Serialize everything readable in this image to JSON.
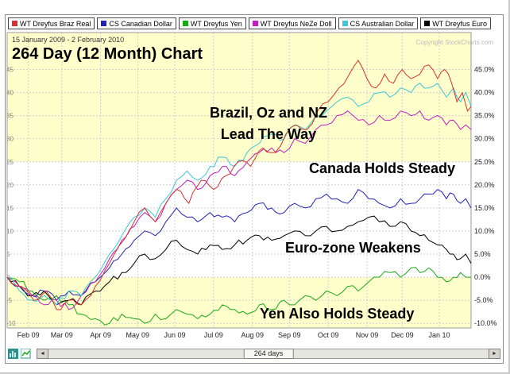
{
  "page": {
    "copyright": "Copyright StockCharts.com"
  },
  "footer": {
    "left_arrow": "◄",
    "right_arrow": "►",
    "slider_label": "264 days"
  },
  "chart_data": {
    "type": "line",
    "title": "264 Day (12 Month) Chart",
    "subtitle": "15 January 2009 - 2 February 2010",
    "ylabel": "percent change since start",
    "legend_position": "top",
    "grid": true,
    "x_axis": {
      "range": [
        0,
        263
      ],
      "unit": "trading days",
      "ticks": [
        {
          "label": "Feb 09",
          "t": 12
        },
        {
          "label": "Mar 09",
          "t": 31
        },
        {
          "label": "Apr 09",
          "t": 53
        },
        {
          "label": "May 09",
          "t": 74
        },
        {
          "label": "Jun 09",
          "t": 95
        },
        {
          "label": "Jul 09",
          "t": 117
        },
        {
          "label": "Aug 09",
          "t": 139
        },
        {
          "label": "Sep 09",
          "t": 160
        },
        {
          "label": "Oct 09",
          "t": 182
        },
        {
          "label": "Nov 09",
          "t": 204
        },
        {
          "label": "Dec 09",
          "t": 224
        },
        {
          "label": "Jan 10",
          "t": 245
        }
      ]
    },
    "y_axis": {
      "range": [
        -11,
        53
      ],
      "ticks": [
        45,
        40,
        35,
        30,
        25,
        20,
        15,
        10,
        5,
        0,
        -5,
        -10
      ],
      "format": "0.0%"
    },
    "bands": [
      {
        "from": 25,
        "to": 53,
        "color": "#FFFFCC"
      },
      {
        "from": -11,
        "to": 0,
        "color": "#FFFFCC"
      }
    ],
    "annotations": [
      {
        "text": "Brazil, Oz and NZ\nLead The Way"
      },
      {
        "text": "Canada Holds Steady"
      },
      {
        "text": "Euro-zone Weakens"
      },
      {
        "text": "Yen Also Holds Steady"
      }
    ],
    "series": [
      {
        "name": "WT Dreyfus Braz Real",
        "color": "#d83030",
        "points": [
          [
            0,
            0
          ],
          [
            8,
            -2
          ],
          [
            15,
            -5
          ],
          [
            22,
            -3
          ],
          [
            28,
            -7
          ],
          [
            35,
            -5
          ],
          [
            42,
            -6
          ],
          [
            50,
            -2
          ],
          [
            58,
            3
          ],
          [
            66,
            8
          ],
          [
            72,
            12
          ],
          [
            78,
            15
          ],
          [
            84,
            12
          ],
          [
            90,
            16
          ],
          [
            96,
            19
          ],
          [
            103,
            16
          ],
          [
            110,
            21
          ],
          [
            117,
            19
          ],
          [
            124,
            22
          ],
          [
            131,
            25
          ],
          [
            138,
            24
          ],
          [
            145,
            28
          ],
          [
            152,
            27
          ],
          [
            158,
            31
          ],
          [
            164,
            33
          ],
          [
            170,
            32
          ],
          [
            176,
            36
          ],
          [
            182,
            38
          ],
          [
            188,
            41
          ],
          [
            194,
            44
          ],
          [
            199,
            47
          ],
          [
            204,
            43
          ],
          [
            209,
            41
          ],
          [
            214,
            44
          ],
          [
            219,
            42
          ],
          [
            224,
            45
          ],
          [
            229,
            43
          ],
          [
            234,
            44
          ],
          [
            239,
            46
          ],
          [
            244,
            43
          ],
          [
            248,
            45
          ],
          [
            252,
            42
          ],
          [
            255,
            38
          ],
          [
            258,
            40
          ],
          [
            261,
            36
          ],
          [
            263,
            37
          ]
        ]
      },
      {
        "name": "CS Canadian Dollar",
        "color": "#2222b8",
        "points": [
          [
            0,
            0
          ],
          [
            7,
            -2
          ],
          [
            14,
            -4
          ],
          [
            21,
            -3
          ],
          [
            28,
            -5
          ],
          [
            35,
            -3
          ],
          [
            42,
            -4
          ],
          [
            50,
            -1
          ],
          [
            58,
            2
          ],
          [
            65,
            5
          ],
          [
            72,
            8
          ],
          [
            78,
            10
          ],
          [
            84,
            9
          ],
          [
            90,
            12
          ],
          [
            96,
            15
          ],
          [
            102,
            13
          ],
          [
            108,
            12
          ],
          [
            115,
            14
          ],
          [
            122,
            13
          ],
          [
            129,
            12
          ],
          [
            136,
            14
          ],
          [
            143,
            16
          ],
          [
            150,
            15
          ],
          [
            157,
            14
          ],
          [
            163,
            16
          ],
          [
            169,
            15
          ],
          [
            175,
            17
          ],
          [
            181,
            18
          ],
          [
            187,
            17
          ],
          [
            193,
            16
          ],
          [
            199,
            19
          ],
          [
            205,
            17
          ],
          [
            211,
            16
          ],
          [
            217,
            15
          ],
          [
            223,
            17
          ],
          [
            229,
            16
          ],
          [
            234,
            17
          ],
          [
            239,
            18
          ],
          [
            244,
            19
          ],
          [
            249,
            17
          ],
          [
            253,
            18
          ],
          [
            257,
            16
          ],
          [
            260,
            17
          ],
          [
            263,
            15
          ]
        ]
      },
      {
        "name": "WT Dreyfus Yen",
        "color": "#18a818",
        "points": [
          [
            0,
            0
          ],
          [
            7,
            -1
          ],
          [
            14,
            -3
          ],
          [
            21,
            -5
          ],
          [
            28,
            -4
          ],
          [
            35,
            -6
          ],
          [
            42,
            -8
          ],
          [
            50,
            -9
          ],
          [
            58,
            -10
          ],
          [
            65,
            -8
          ],
          [
            72,
            -9
          ],
          [
            78,
            -10
          ],
          [
            84,
            -8
          ],
          [
            90,
            -9
          ],
          [
            96,
            -7
          ],
          [
            102,
            -8
          ],
          [
            108,
            -9
          ],
          [
            115,
            -8
          ],
          [
            122,
            -6
          ],
          [
            129,
            -7
          ],
          [
            136,
            -8
          ],
          [
            143,
            -6
          ],
          [
            150,
            -7
          ],
          [
            157,
            -5
          ],
          [
            163,
            -6
          ],
          [
            169,
            -4
          ],
          [
            175,
            -5
          ],
          [
            181,
            -3
          ],
          [
            187,
            -4
          ],
          [
            193,
            -2
          ],
          [
            199,
            -3
          ],
          [
            205,
            -1
          ],
          [
            211,
            0
          ],
          [
            217,
            1
          ],
          [
            223,
            0
          ],
          [
            229,
            2
          ],
          [
            234,
            1
          ],
          [
            239,
            2
          ],
          [
            244,
            0
          ],
          [
            249,
            -1
          ],
          [
            253,
            0
          ],
          [
            257,
            1
          ],
          [
            260,
            0
          ],
          [
            263,
            0
          ]
        ]
      },
      {
        "name": "WT Dreyfus NeZe Doll",
        "color": "#c020c0",
        "points": [
          [
            0,
            0
          ],
          [
            7,
            -2
          ],
          [
            14,
            -4
          ],
          [
            21,
            -6
          ],
          [
            28,
            -5
          ],
          [
            35,
            -7
          ],
          [
            42,
            -4
          ],
          [
            50,
            -1
          ],
          [
            58,
            4
          ],
          [
            65,
            8
          ],
          [
            72,
            11
          ],
          [
            78,
            14
          ],
          [
            84,
            12
          ],
          [
            90,
            16
          ],
          [
            96,
            19
          ],
          [
            102,
            21
          ],
          [
            108,
            19
          ],
          [
            115,
            22
          ],
          [
            122,
            24
          ],
          [
            129,
            22
          ],
          [
            136,
            25
          ],
          [
            143,
            27
          ],
          [
            150,
            28
          ],
          [
            157,
            27
          ],
          [
            163,
            30
          ],
          [
            169,
            29
          ],
          [
            175,
            32
          ],
          [
            181,
            33
          ],
          [
            187,
            35
          ],
          [
            193,
            36
          ],
          [
            199,
            34
          ],
          [
            205,
            33
          ],
          [
            211,
            35
          ],
          [
            217,
            34
          ],
          [
            223,
            36
          ],
          [
            229,
            35
          ],
          [
            234,
            36
          ],
          [
            239,
            34
          ],
          [
            244,
            35
          ],
          [
            249,
            33
          ],
          [
            253,
            34
          ],
          [
            257,
            32
          ],
          [
            260,
            33
          ],
          [
            263,
            32
          ]
        ]
      },
      {
        "name": "CS Australian Dollar",
        "color": "#3cc8d8",
        "points": [
          [
            0,
            0
          ],
          [
            7,
            -3
          ],
          [
            14,
            -5
          ],
          [
            21,
            -4
          ],
          [
            28,
            -6
          ],
          [
            35,
            -3
          ],
          [
            42,
            -4
          ],
          [
            50,
            0
          ],
          [
            58,
            5
          ],
          [
            65,
            9
          ],
          [
            72,
            13
          ],
          [
            78,
            15
          ],
          [
            84,
            13
          ],
          [
            90,
            17
          ],
          [
            96,
            21
          ],
          [
            102,
            23
          ],
          [
            108,
            21
          ],
          [
            115,
            24
          ],
          [
            122,
            26
          ],
          [
            129,
            24
          ],
          [
            136,
            27
          ],
          [
            143,
            29
          ],
          [
            150,
            31
          ],
          [
            157,
            30
          ],
          [
            163,
            33
          ],
          [
            169,
            32
          ],
          [
            175,
            35
          ],
          [
            181,
            36
          ],
          [
            187,
            38
          ],
          [
            193,
            39
          ],
          [
            199,
            37
          ],
          [
            205,
            38
          ],
          [
            211,
            40
          ],
          [
            217,
            39
          ],
          [
            223,
            41
          ],
          [
            229,
            40
          ],
          [
            234,
            42
          ],
          [
            239,
            41
          ],
          [
            244,
            42
          ],
          [
            249,
            39
          ],
          [
            253,
            41
          ],
          [
            257,
            38
          ],
          [
            260,
            40
          ],
          [
            263,
            37
          ]
        ]
      },
      {
        "name": "WT Dreyfus Euro",
        "color": "#000000",
        "points": [
          [
            0,
            0
          ],
          [
            7,
            -2
          ],
          [
            14,
            -4
          ],
          [
            21,
            -3
          ],
          [
            28,
            -6
          ],
          [
            35,
            -5
          ],
          [
            42,
            -6
          ],
          [
            50,
            -3
          ],
          [
            58,
            -1
          ],
          [
            65,
            1
          ],
          [
            72,
            3
          ],
          [
            78,
            5
          ],
          [
            84,
            4
          ],
          [
            90,
            6
          ],
          [
            96,
            8
          ],
          [
            102,
            6
          ],
          [
            108,
            5
          ],
          [
            115,
            7
          ],
          [
            122,
            6
          ],
          [
            129,
            7
          ],
          [
            136,
            8
          ],
          [
            143,
            9
          ],
          [
            150,
            8
          ],
          [
            157,
            9
          ],
          [
            163,
            10
          ],
          [
            169,
            9
          ],
          [
            175,
            10
          ],
          [
            181,
            11
          ],
          [
            187,
            10
          ],
          [
            193,
            11
          ],
          [
            199,
            12
          ],
          [
            205,
            13
          ],
          [
            211,
            12
          ],
          [
            217,
            11
          ],
          [
            223,
            12
          ],
          [
            229,
            10
          ],
          [
            234,
            9
          ],
          [
            239,
            8
          ],
          [
            244,
            7
          ],
          [
            249,
            6
          ],
          [
            253,
            5
          ],
          [
            257,
            4
          ],
          [
            260,
            5
          ],
          [
            263,
            3
          ]
        ]
      }
    ]
  }
}
